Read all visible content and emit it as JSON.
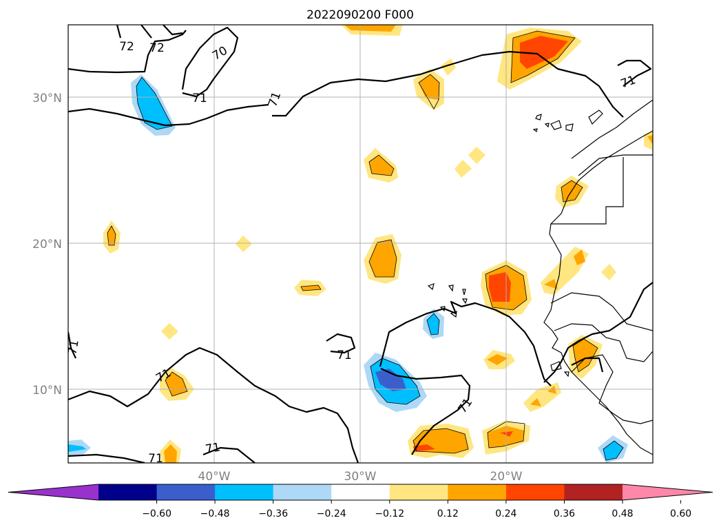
{
  "title": "2022090200 F000",
  "lat_labels": [
    "30°N",
    "20°N",
    "10°N"
  ],
  "lon_labels": [
    "40°W",
    "30°W",
    "20°W"
  ],
  "colorbar": {
    "ticks": [
      "−0.60",
      "−0.48",
      "−0.36",
      "−0.24",
      "−0.12",
      "0.12",
      "0.24",
      "0.36",
      "0.48",
      "0.60"
    ],
    "colors": [
      "#9932cc",
      "#00008b",
      "#3a5fcd",
      "#00bfff",
      "#add8f6",
      "#ffffff",
      "#ffe680",
      "#ffa500",
      "#ff4500",
      "#b22222",
      "#ff88aa"
    ]
  },
  "contour_labels": [
    "72",
    "72",
    "70",
    "71",
    "71",
    "71",
    "71",
    "71",
    "71",
    "71",
    "71",
    "71",
    "71"
  ]
}
